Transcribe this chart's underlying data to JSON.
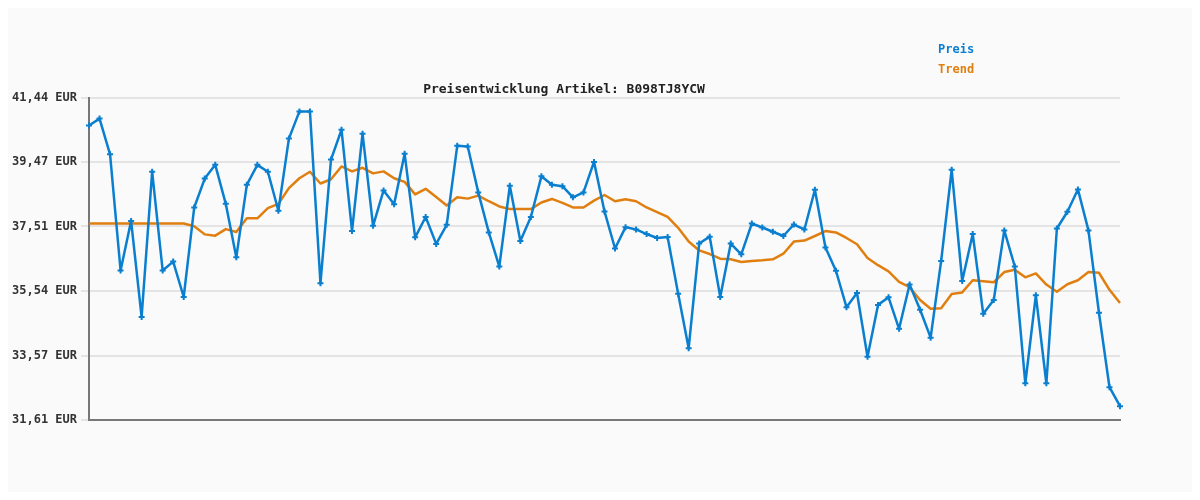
{
  "chart_data": {
    "type": "line",
    "title": "Preisentwicklung Artikel: B098TJ8YCW",
    "categories": [
      null,
      null,
      null,
      null,
      null,
      null,
      null,
      null,
      null,
      null,
      null,
      null,
      null,
      null,
      null,
      null,
      null,
      null,
      null,
      null,
      null,
      null,
      null,
      null,
      null,
      null,
      null,
      null,
      null,
      null,
      null,
      null,
      null,
      null,
      null,
      null,
      null,
      null,
      null,
      null,
      null,
      null,
      null,
      null,
      null,
      null,
      null,
      null,
      null,
      null,
      null,
      null,
      null,
      null,
      null,
      null,
      null,
      null,
      null,
      null,
      null,
      null,
      null,
      null,
      null,
      null,
      null,
      null,
      null,
      null,
      null,
      null,
      null,
      null,
      null,
      null,
      null,
      null,
      null,
      null,
      null,
      null,
      null,
      null,
      null,
      null,
      null,
      null,
      null,
      null,
      null,
      null,
      null,
      null,
      null,
      null,
      null,
      null,
      null
    ],
    "series": [
      {
        "name": "Preis",
        "color": "#0a7fd0",
        "marker": "cross",
        "values": [
          40.59,
          40.8,
          39.71,
          36.17,
          37.68,
          34.75,
          39.18,
          36.17,
          36.44,
          35.36,
          38.09,
          38.97,
          39.39,
          38.2,
          36.57,
          38.78,
          39.39,
          39.18,
          37.99,
          40.19,
          41.02,
          41.02,
          35.78,
          39.55,
          40.46,
          37.37,
          40.34,
          37.53,
          38.61,
          38.19,
          39.73,
          37.18,
          37.8,
          36.98,
          37.56,
          39.97,
          39.95,
          38.55,
          37.33,
          36.29,
          38.75,
          37.07,
          37.8,
          39.04,
          38.78,
          38.74,
          38.4,
          38.55,
          39.48,
          37.97,
          36.84,
          37.49,
          37.42,
          37.28,
          37.16,
          37.19,
          35.46,
          33.8,
          36.99,
          37.2,
          35.36,
          36.99,
          36.66,
          37.6,
          37.48,
          37.35,
          37.22,
          37.57,
          37.42,
          38.63,
          36.87,
          36.16,
          35.05,
          35.48,
          33.54,
          35.12,
          35.35,
          34.39,
          35.74,
          34.97,
          34.12,
          36.46,
          39.24,
          35.85,
          37.28,
          34.85,
          35.27,
          37.39,
          36.29,
          32.73,
          35.41,
          32.73,
          37.45,
          37.96,
          38.64,
          37.39,
          34.88,
          32.61,
          32.03
        ]
      },
      {
        "name": "Trend",
        "color": "#e07f10",
        "marker": "none",
        "values": [
          37.6,
          37.6,
          37.6,
          37.6,
          37.6,
          37.6,
          37.6,
          37.6,
          37.6,
          37.6,
          37.52,
          37.27,
          37.23,
          37.43,
          37.34,
          37.76,
          37.76,
          38.07,
          38.2,
          38.68,
          38.98,
          39.18,
          38.82,
          38.95,
          39.34,
          39.19,
          39.3,
          39.13,
          39.19,
          38.98,
          38.87,
          38.49,
          38.66,
          38.41,
          38.15,
          38.4,
          38.36,
          38.45,
          38.28,
          38.12,
          38.04,
          38.04,
          38.04,
          38.24,
          38.35,
          38.23,
          38.09,
          38.09,
          38.3,
          38.47,
          38.28,
          38.34,
          38.28,
          38.09,
          37.95,
          37.8,
          37.47,
          37.05,
          36.78,
          36.67,
          36.53,
          36.51,
          36.43,
          36.46,
          36.48,
          36.51,
          36.68,
          37.05,
          37.08,
          37.22,
          37.37,
          37.33,
          37.16,
          36.97,
          36.55,
          36.33,
          36.14,
          35.82,
          35.66,
          35.27,
          35.0,
          35.02,
          35.45,
          35.5,
          35.87,
          35.84,
          35.81,
          36.12,
          36.19,
          35.96,
          36.08,
          35.74,
          35.52,
          35.75,
          35.87,
          36.12,
          36.1,
          35.58,
          35.18
        ]
      }
    ],
    "ylim": [
      31.61,
      41.44
    ],
    "yticks": [
      {
        "value": 31.61,
        "label": "31,61 EUR"
      },
      {
        "value": 33.57,
        "label": "33,57 EUR"
      },
      {
        "value": 35.54,
        "label": "35,54 EUR"
      },
      {
        "value": 37.51,
        "label": "37,51 EUR"
      },
      {
        "value": 39.47,
        "label": "39,47 EUR"
      },
      {
        "value": 41.44,
        "label": "41,44 EUR"
      }
    ],
    "grid": "y",
    "legend": "top right",
    "tick_labels": "y"
  }
}
